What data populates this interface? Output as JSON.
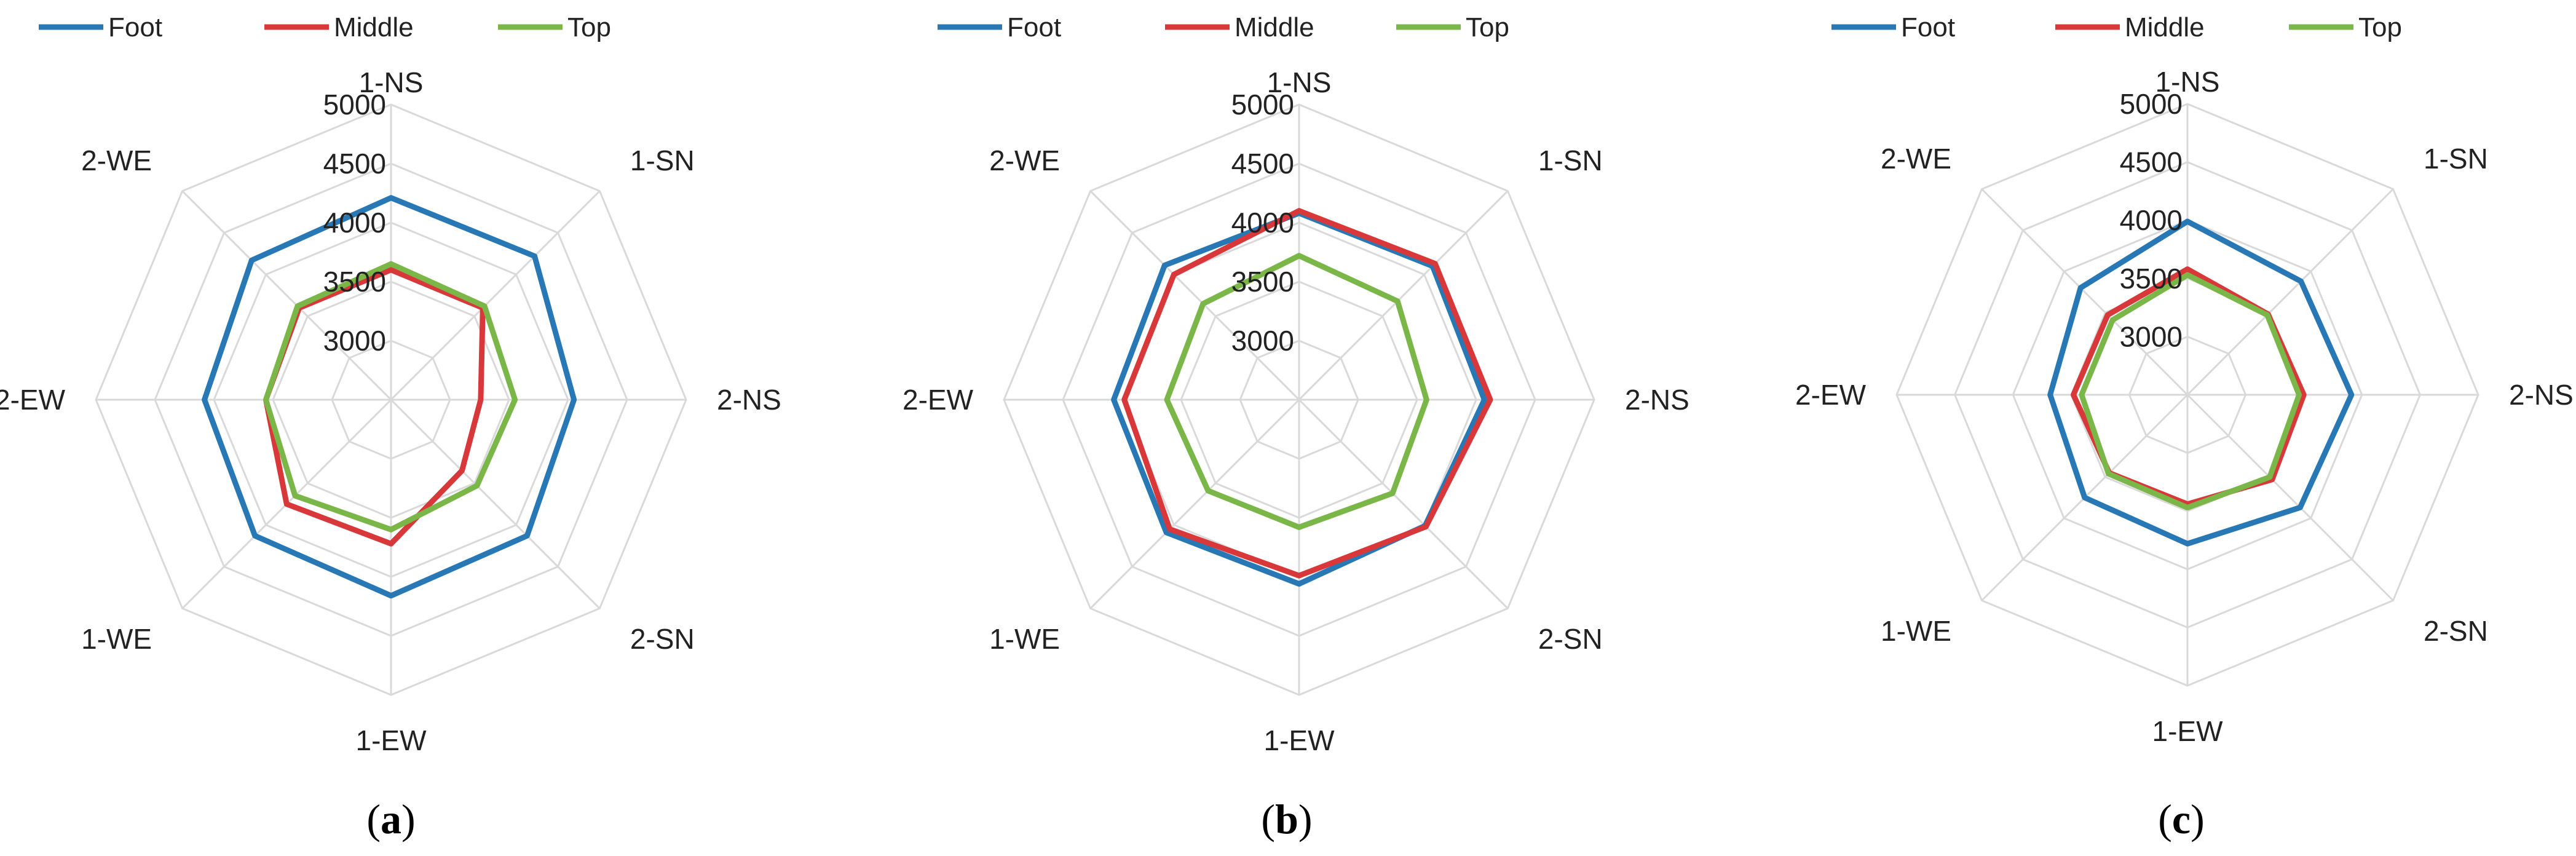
{
  "figure": {
    "captions": [
      "(a)",
      "(b)",
      "(c)"
    ],
    "caption_letters": [
      "a",
      "b",
      "c"
    ]
  },
  "chart_data": [
    {
      "type": "radar",
      "panel": "(a)",
      "categories": [
        "1-NS",
        "1-SN",
        "2-NS",
        "2-SN",
        "1-EW",
        "1-WE",
        "2-EW",
        "2-WE"
      ],
      "rlim": [
        2500,
        5000
      ],
      "ticks": [
        3000,
        3500,
        4000,
        4500,
        5000
      ],
      "legend": [
        "Foot",
        "Middle",
        "Top"
      ],
      "legend_position": "top",
      "grid": true,
      "series": [
        {
          "name": "Foot",
          "color": "#2878B5",
          "values": [
            4210,
            4220,
            4050,
            4130,
            4160,
            4130,
            4080,
            4170
          ]
        },
        {
          "name": "Middle",
          "color": "#D9383A",
          "values": [
            3600,
            3600,
            3260,
            3350,
            3720,
            3750,
            3560,
            3600
          ]
        },
        {
          "name": "Top",
          "color": "#7AB648",
          "values": [
            3650,
            3620,
            3550,
            3530,
            3600,
            3650,
            3560,
            3620
          ]
        }
      ]
    },
    {
      "type": "radar",
      "panel": "(b)",
      "categories": [
        "1-NS",
        "1-SN",
        "2-NS",
        "2-SN",
        "1-EW",
        "1-WE",
        "2-EW",
        "2-WE"
      ],
      "rlim": [
        2500,
        5000
      ],
      "ticks": [
        3000,
        3500,
        4000,
        4500,
        5000
      ],
      "legend": [
        "Foot",
        "Middle",
        "Top"
      ],
      "legend_position": "top",
      "grid": true,
      "series": [
        {
          "name": "Foot",
          "color": "#2878B5",
          "values": [
            4080,
            4100,
            4070,
            4010,
            4060,
            4090,
            4070,
            4110
          ]
        },
        {
          "name": "Middle",
          "color": "#D9383A",
          "values": [
            4100,
            4130,
            4120,
            4020,
            3990,
            4050,
            3980,
            4000
          ]
        },
        {
          "name": "Top",
          "color": "#7AB648",
          "values": [
            3720,
            3680,
            3580,
            3620,
            3580,
            3590,
            3620,
            3650
          ]
        }
      ]
    },
    {
      "type": "radar",
      "panel": "(c)",
      "categories": [
        "1-NS",
        "1-SN",
        "2-NS",
        "2-SN",
        "1-EW",
        "1-WE",
        "2-EW",
        "2-WE"
      ],
      "rlim": [
        2500,
        5000
      ],
      "ticks": [
        3000,
        3500,
        4000,
        4500,
        5000
      ],
      "legend": [
        "Foot",
        "Middle",
        "Top"
      ],
      "legend_position": "top",
      "grid": true,
      "series": [
        {
          "name": "Foot",
          "color": "#2878B5",
          "values": [
            3990,
            3880,
            3910,
            3870,
            3780,
            3750,
            3680,
            3800
          ]
        },
        {
          "name": "Middle",
          "color": "#D9383A",
          "values": [
            3580,
            3480,
            3500,
            3530,
            3440,
            3450,
            3480,
            3470
          ]
        },
        {
          "name": "Top",
          "color": "#7AB648",
          "values": [
            3530,
            3470,
            3460,
            3500,
            3470,
            3460,
            3410,
            3410
          ]
        }
      ]
    }
  ]
}
